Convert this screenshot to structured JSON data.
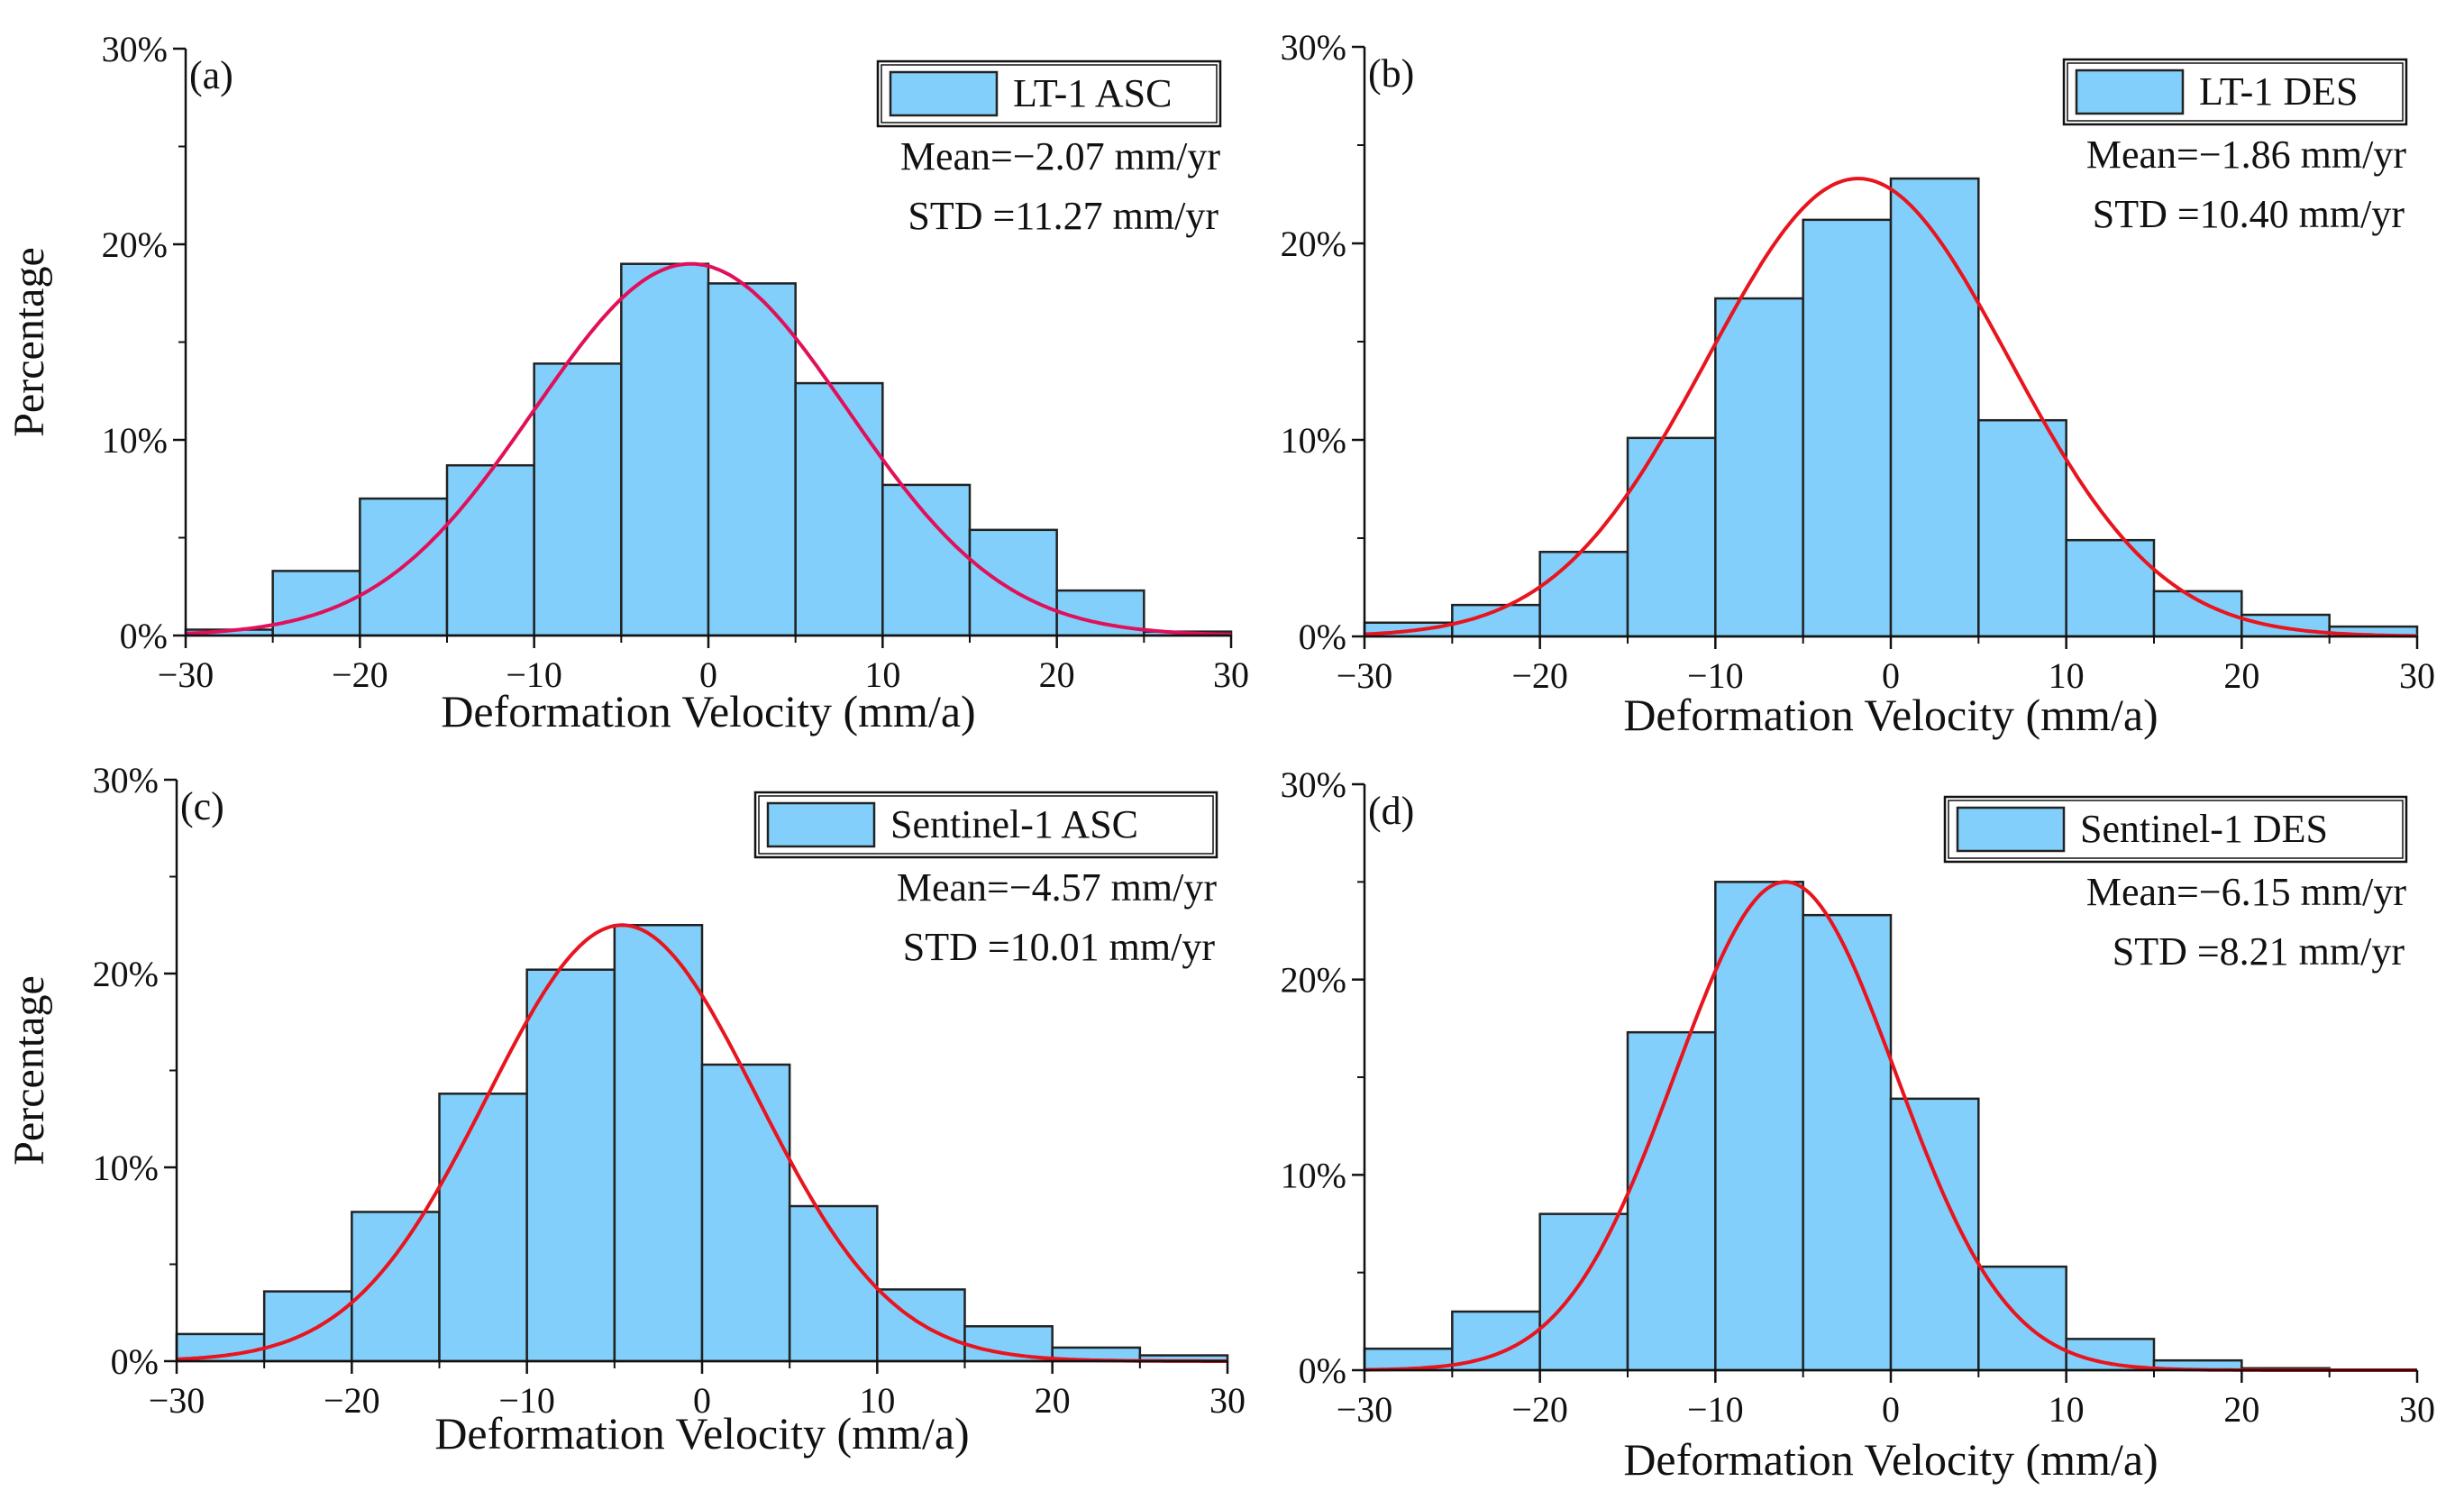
{
  "colors": {
    "bar_fill": "#81CFFA",
    "bar_stroke": "#222222",
    "curve_a": "#E0105A",
    "curve": "#E8141E",
    "axis": "#111111"
  },
  "chart_data": [
    {
      "type": "bar",
      "panel_label": "(a)",
      "ylabel": "Percentage",
      "xlabel": "Deformation Velocity (mm/a)",
      "xlim": [
        -30,
        30
      ],
      "ylim": [
        0,
        30
      ],
      "x_ticks": [
        -30,
        -20,
        -10,
        0,
        10,
        20,
        30
      ],
      "x_tick_labels": [
        "−30",
        "−20",
        "−10",
        "0",
        "10",
        "20",
        "30"
      ],
      "y_ticks": [
        0,
        10,
        20,
        30
      ],
      "y_tick_labels": [
        "0%",
        "10%",
        "20%",
        "30%"
      ],
      "bin_edges": [
        -30,
        -25,
        -20,
        -15,
        -10,
        -5,
        0,
        5,
        10,
        15,
        20,
        25,
        30
      ],
      "values": [
        0.3,
        3.3,
        7.0,
        8.7,
        13.9,
        19.0,
        18.0,
        12.9,
        7.7,
        5.4,
        2.3,
        0.2
      ],
      "curve": {
        "mean": -1.0,
        "std": 9.0,
        "peak": 19.0
      },
      "legend": "LT-1 ASC",
      "mean_text": "Mean=−2.07 mm/yr",
      "std_text": "STD =11.27 mm/yr",
      "curve_color_key": "curve_a"
    },
    {
      "type": "bar",
      "panel_label": "(b)",
      "ylabel": "",
      "xlabel": "Deformation Velocity (mm/a)",
      "xlim": [
        -30,
        30
      ],
      "ylim": [
        0,
        30
      ],
      "x_ticks": [
        -30,
        -20,
        -10,
        0,
        10,
        20,
        30
      ],
      "x_tick_labels": [
        "−30",
        "−20",
        "−10",
        "0",
        "10",
        "20",
        "30"
      ],
      "y_ticks": [
        0,
        10,
        20,
        30
      ],
      "y_tick_labels": [
        "0%",
        "10%",
        "20%",
        "30%"
      ],
      "bin_edges": [
        -30,
        -25,
        -20,
        -15,
        -10,
        -5,
        0,
        5,
        10,
        15,
        20,
        25,
        30
      ],
      "values": [
        0.7,
        1.6,
        4.3,
        10.1,
        17.2,
        21.2,
        23.3,
        11.0,
        4.9,
        2.3,
        1.1,
        0.5
      ],
      "curve": {
        "mean": -1.86,
        "std": 8.6,
        "peak": 23.3
      },
      "legend": "LT-1 DES",
      "mean_text": "Mean=−1.86 mm/yr",
      "std_text": "STD =10.40 mm/yr",
      "curve_color_key": "curve"
    },
    {
      "type": "bar",
      "panel_label": "(c)",
      "ylabel": "Percentage",
      "xlabel": "Deformation Velocity (mm/a)",
      "xlim": [
        -30,
        30
      ],
      "ylim": [
        0,
        30
      ],
      "x_ticks": [
        -30,
        -20,
        -10,
        0,
        10,
        20,
        30
      ],
      "x_tick_labels": [
        "−30",
        "−20",
        "−10",
        "0",
        "10",
        "20",
        "30"
      ],
      "y_ticks": [
        0,
        10,
        20,
        30
      ],
      "y_tick_labels": [
        "0%",
        "10%",
        "20%",
        "30%"
      ],
      "bin_edges": [
        -30,
        -25,
        -20,
        -15,
        -10,
        -5,
        0,
        5,
        10,
        15,
        20,
        25,
        30
      ],
      "values": [
        1.4,
        3.6,
        7.7,
        13.8,
        20.2,
        22.5,
        15.3,
        8.0,
        3.7,
        1.8,
        0.7,
        0.3
      ],
      "curve": {
        "mean": -4.57,
        "std": 7.7,
        "peak": 22.5
      },
      "legend": "Sentinel-1 ASC",
      "mean_text": "Mean=−4.57 mm/yr",
      "std_text": "STD =10.01 mm/yr",
      "curve_color_key": "curve"
    },
    {
      "type": "bar",
      "panel_label": "(d)",
      "ylabel": "",
      "xlabel": "Deformation Velocity (mm/a)",
      "xlim": [
        -30,
        30
      ],
      "ylim": [
        0,
        30
      ],
      "x_ticks": [
        -30,
        -20,
        -10,
        0,
        10,
        20,
        30
      ],
      "x_tick_labels": [
        "−30",
        "−20",
        "−10",
        "0",
        "10",
        "20",
        "30"
      ],
      "y_ticks": [
        0,
        10,
        20,
        30
      ],
      "y_tick_labels": [
        "0%",
        "10%",
        "20%",
        "30%"
      ],
      "bin_edges": [
        -30,
        -25,
        -20,
        -15,
        -10,
        -5,
        0,
        5,
        10,
        15,
        20,
        25,
        30
      ],
      "values": [
        1.1,
        3.0,
        8.0,
        17.3,
        25.0,
        23.3,
        13.9,
        5.3,
        1.6,
        0.5,
        0.1,
        0.0
      ],
      "curve": {
        "mean": -6.0,
        "std": 6.3,
        "peak": 25.0
      },
      "legend": "Sentinel-1 DES",
      "mean_text": "Mean=−6.15 mm/yr",
      "std_text": "STD =8.21 mm/yr",
      "curve_color_key": "curve"
    }
  ]
}
